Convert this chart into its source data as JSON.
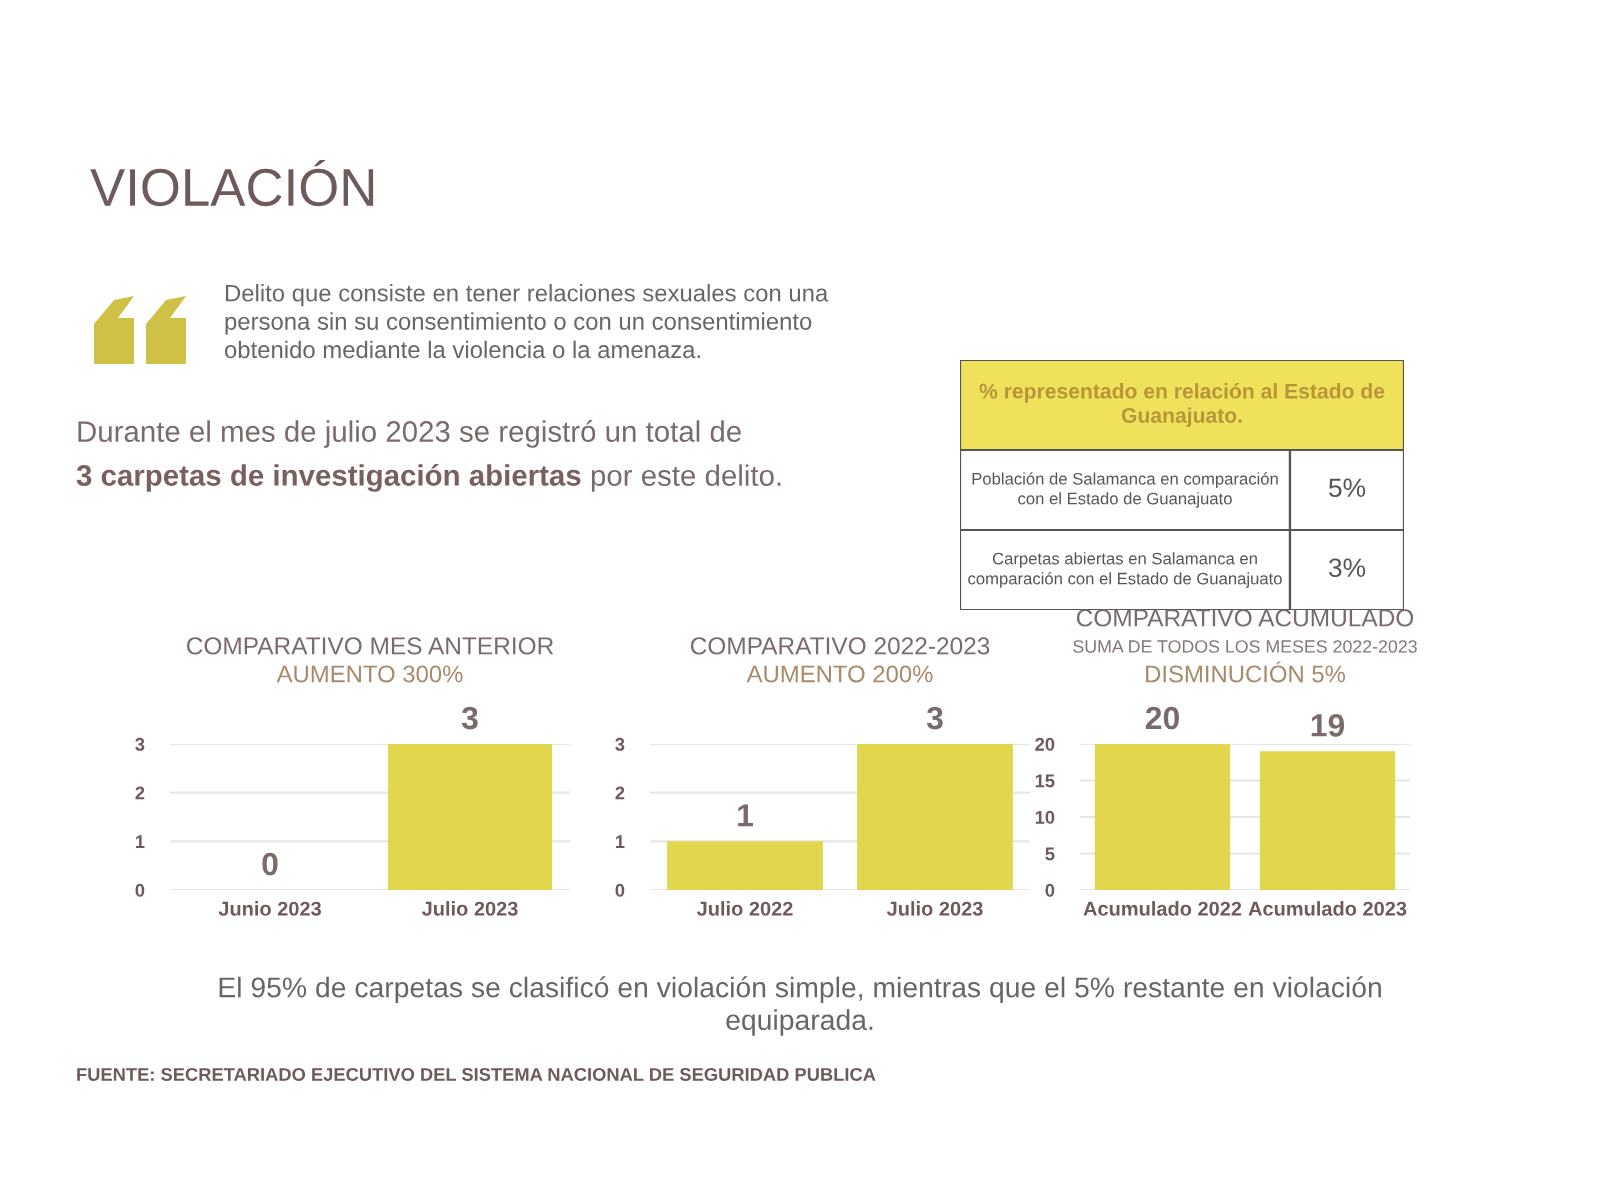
{
  "chart_data": [
    {
      "type": "other",
      "title": "VIOLACIÓN",
      "annotations": [
        "Delito que consiste en tener relaciones sexuales con una\npersona sin su consentimiento o con un consentimiento\nobtenido mediante la violencia o la amenaza.",
        "Durante el mes de julio 2023 se registró un total de",
        "3 carpetas de investigación abiertas",
        "por este delito."
      ]
    },
    {
      "type": "other",
      "title": "% representado en relación al Estado de\nGuanajuato.",
      "annotations": [
        "Población de Salamanca en comparación\ncon el Estado de Guanajuato",
        "5%",
        "Carpetas abiertas en Salamanca en\ncomparación con el Estado de Guanajuato",
        "3%"
      ]
    },
    {
      "type": "bar",
      "title": "COMPARATIVO MES ANTERIOR",
      "annotations": [
        "AUMENTO 300%"
      ],
      "categories": [
        "Junio 2023",
        "Julio 2023"
      ],
      "values": [
        0,
        3
      ],
      "color": "#e2d64c",
      "ylim": [
        0,
        3
      ],
      "yticks": [
        0,
        1,
        2,
        3
      ],
      "grid": "y",
      "data_labels": true
    },
    {
      "type": "bar",
      "title": "COMPARATIVO 2022-2023",
      "annotations": [
        "AUMENTO 200%"
      ],
      "categories": [
        "Julio 2022",
        "Julio 2023"
      ],
      "values": [
        1,
        3
      ],
      "color": "#e2d64c",
      "ylim": [
        0,
        3
      ],
      "yticks": [
        0,
        1,
        2,
        3
      ],
      "grid": "y",
      "data_labels": true
    },
    {
      "type": "bar",
      "title": "COMPARATIVO ACUMULADO",
      "subtitle": "SUMA DE TODOS LOS MESES 2022-2023",
      "annotations": [
        "DISMINUCIÓN 5%"
      ],
      "categories": [
        "Acumulado 2022",
        "Acumulado 2023"
      ],
      "values": [
        20,
        19
      ],
      "color": "#e2d64c",
      "ylim": [
        0,
        20
      ],
      "yticks": [
        0,
        5,
        10,
        15,
        20
      ],
      "grid": "y",
      "data_labels": true
    },
    {
      "type": "other",
      "annotations": [
        "El 95% de carpetas se clasificó en violación simple, mientras que el 5% restante en violación\nequiparada.",
        "FUENTE: SECRETARIADO EJECUTIVO DEL SISTEMA NACIONAL DE SEGURIDAD PUBLICA"
      ]
    }
  ]
}
